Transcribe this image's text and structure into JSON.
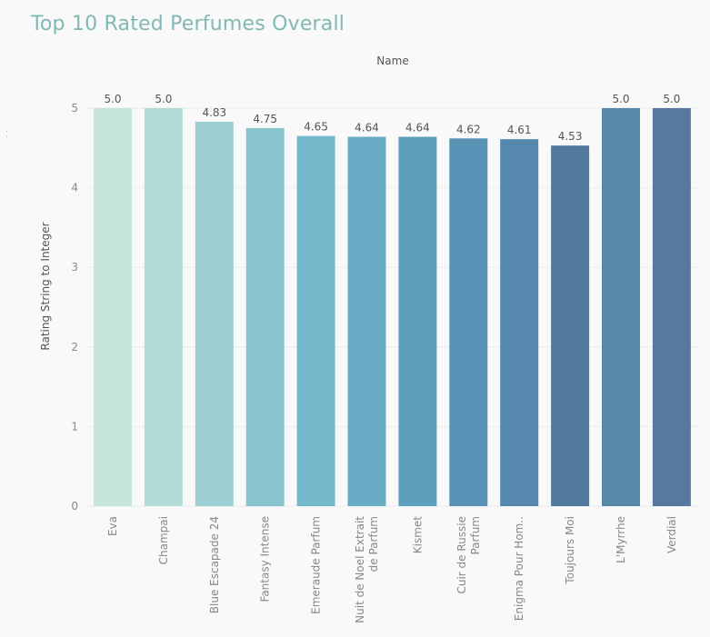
{
  "chart_data": {
    "type": "bar",
    "title": "Top 10 Rated Perfumes Overall",
    "column_header": "Name",
    "ylabel": "Rating String to Integer",
    "ylim": [
      0,
      5.3
    ],
    "yticks": [
      "0",
      "1",
      "2",
      "3",
      "4",
      "5"
    ],
    "grid": true,
    "categories": [
      [
        "Eva"
      ],
      [
        "Champai"
      ],
      [
        "Blue Escapade 24"
      ],
      [
        "Fantasy Intense"
      ],
      [
        "Emeraude Parfum"
      ],
      [
        "Nuit de Noel Extrait",
        "de Parfum"
      ],
      [
        "Kismet"
      ],
      [
        "Cuir de Russie",
        "Parfum"
      ],
      [
        "Enigma Pour Hom.."
      ],
      [
        "Toujours Moi"
      ],
      [
        "L'Myrrhe"
      ],
      [
        "Verdial"
      ]
    ],
    "values": [
      5.0,
      5.0,
      4.83,
      4.75,
      4.65,
      4.64,
      4.64,
      4.62,
      4.61,
      4.53,
      5.0,
      5.0
    ],
    "value_labels": [
      "5.0",
      "5.0",
      "4.83",
      "4.75",
      "4.65",
      "4.64",
      "4.64",
      "4.62",
      "4.61",
      "4.53",
      "5.0",
      "5.0"
    ],
    "colors": [
      "#c7e5dc",
      "#b3dcd6",
      "#9ccfd2",
      "#89c4ce",
      "#75b8cb",
      "#68acc5",
      "#5e9fbe",
      "#5893b6",
      "#5688ae",
      "#53799f",
      "#5888a9",
      "#57799f"
    ]
  }
}
